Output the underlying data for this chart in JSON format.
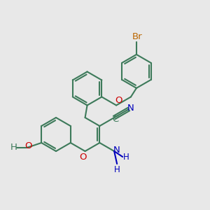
{
  "bg_color": "#e8e8e8",
  "bond_color": "#3d7a5a",
  "o_color": "#cc0000",
  "n_color": "#0000bb",
  "br_color": "#bb6600",
  "figsize": [
    3.0,
    3.0
  ],
  "dpi": 100
}
